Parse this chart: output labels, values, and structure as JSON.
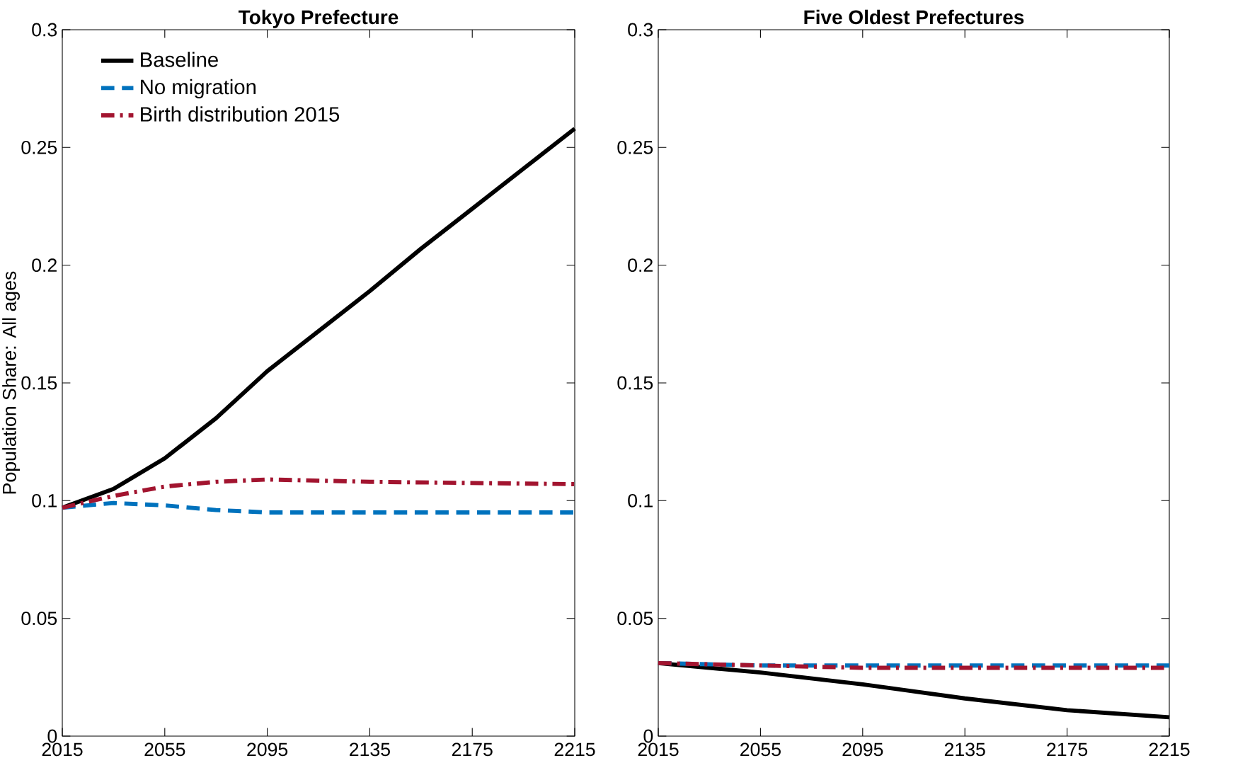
{
  "chart_data": [
    {
      "type": "line",
      "title": "Tokyo Prefecture",
      "ylabel": "Population Share: All ages",
      "xlim": [
        2015,
        2215
      ],
      "xticks": [
        2015,
        2055,
        2095,
        2135,
        2175,
        2215
      ],
      "ylim": [
        0,
        0.3
      ],
      "yticks": [
        0,
        0.05,
        0.1,
        0.15,
        0.2,
        0.25,
        0.3
      ],
      "grid": false,
      "legend": "top left",
      "series": [
        {
          "name": "Baseline",
          "color": "#000000",
          "line_style": "solid",
          "x": [
            2015,
            2035,
            2055,
            2075,
            2095,
            2115,
            2135,
            2155,
            2175,
            2195,
            2215
          ],
          "values": [
            0.097,
            0.105,
            0.118,
            0.135,
            0.155,
            0.172,
            0.189,
            0.207,
            0.224,
            0.241,
            0.258
          ]
        },
        {
          "name": "No migration",
          "color": "#0072bd",
          "line_style": "dashed",
          "x": [
            2015,
            2035,
            2055,
            2075,
            2095,
            2135,
            2175,
            2215
          ],
          "values": [
            0.097,
            0.099,
            0.098,
            0.096,
            0.095,
            0.095,
            0.095,
            0.095
          ]
        },
        {
          "name": "Birth distribution 2015",
          "color": "#a2142f",
          "line_style": "dashdot",
          "x": [
            2015,
            2035,
            2055,
            2075,
            2095,
            2135,
            2175,
            2215
          ],
          "values": [
            0.097,
            0.102,
            0.106,
            0.108,
            0.109,
            0.108,
            0.1075,
            0.107
          ]
        }
      ]
    },
    {
      "type": "line",
      "title": "Five Oldest Prefectures",
      "xlim": [
        2015,
        2215
      ],
      "xticks": [
        2015,
        2055,
        2095,
        2135,
        2175,
        2215
      ],
      "ylim": [
        0,
        0.3
      ],
      "yticks": [
        0,
        0.05,
        0.1,
        0.15,
        0.2,
        0.25,
        0.3
      ],
      "grid": false,
      "series": [
        {
          "color": "#000000",
          "line_style": "solid",
          "x": [
            2015,
            2055,
            2095,
            2135,
            2175,
            2215
          ],
          "values": [
            0.031,
            0.027,
            0.022,
            0.016,
            0.011,
            0.008
          ]
        },
        {
          "color": "#0072bd",
          "line_style": "dashed",
          "x": [
            2015,
            2055,
            2095,
            2135,
            2175,
            2215
          ],
          "values": [
            0.031,
            0.03,
            0.03,
            0.03,
            0.03,
            0.03
          ]
        },
        {
          "color": "#a2142f",
          "line_style": "dashdot",
          "x": [
            2015,
            2055,
            2095,
            2135,
            2175,
            2215
          ],
          "values": [
            0.031,
            0.03,
            0.029,
            0.029,
            0.029,
            0.029
          ]
        }
      ]
    }
  ]
}
